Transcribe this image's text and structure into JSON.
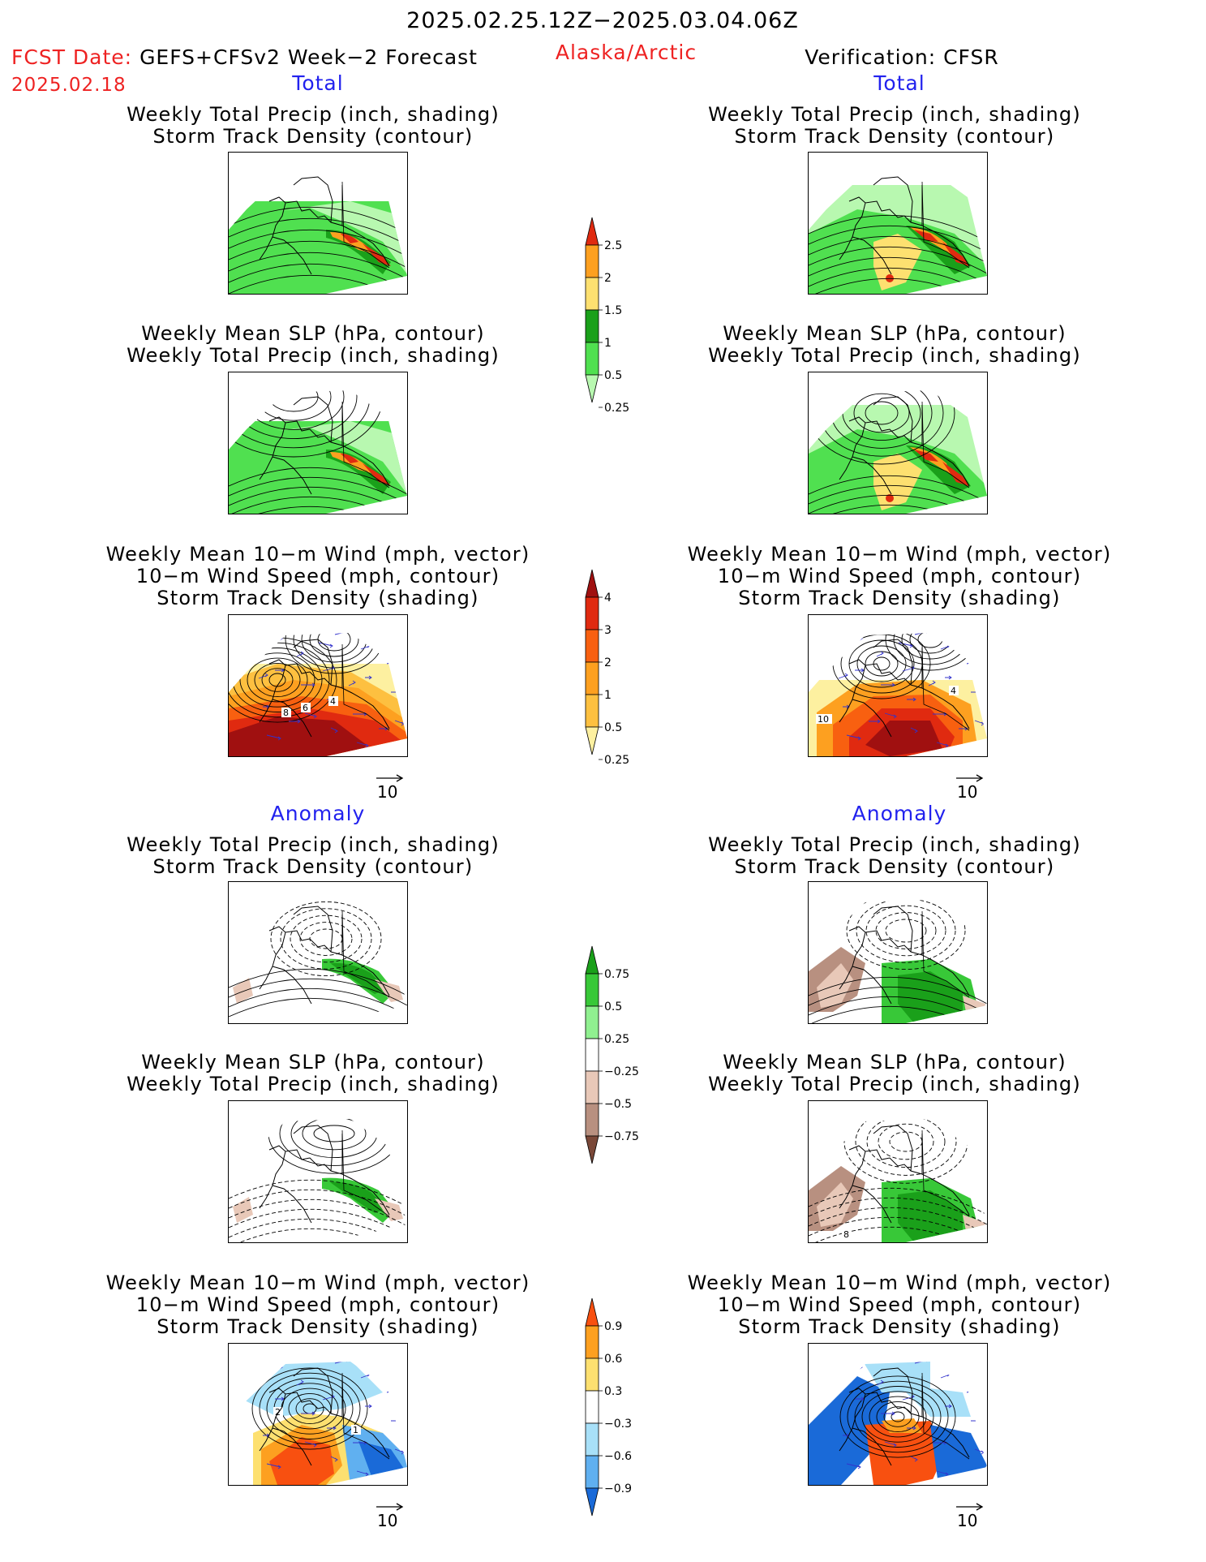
{
  "header": {
    "valid_period": "2025.02.25.12Z−2025.03.04.06Z",
    "fcst_date_label": "FCST Date:",
    "fcst_model": "GEFS+CFSv2 Week−2 Forecast",
    "fcst_date": "2025.02.18",
    "region": "Alaska/Arctic",
    "verification": "Verification: CFSR"
  },
  "sections": {
    "total": "Total",
    "anomaly": "Anomaly"
  },
  "titles": {
    "precip_track": "Weekly Total Precip (inch, shading)\nStorm Track Density (contour)",
    "slp_precip": "Weekly Mean SLP (hPa, contour)\nWeekly Total Precip (inch, shading)",
    "wind_track": "Weekly Mean 10−m Wind (mph, vector)\n10−m Wind Speed (mph, contour)\nStorm Track Density (shading)"
  },
  "colorbars": {
    "precip_total": {
      "labels": [
        "2.5",
        "2",
        "1.5",
        "1",
        "0.5",
        "0.25"
      ],
      "colors": [
        "#e02a10",
        "#fda020",
        "#fde070",
        "#1aa01a",
        "#50e050",
        "#b8f8b0"
      ]
    },
    "track_total": {
      "labels": [
        "4",
        "3",
        "2",
        "1",
        "0.5",
        "0.25"
      ],
      "colors": [
        "#a01010",
        "#e02a10",
        "#f86010",
        "#fda020",
        "#fdc040",
        "#fdf0a0"
      ]
    },
    "precip_anom": {
      "labels": [
        "0.75",
        "0.5",
        "0.25",
        "−0.25",
        "−0.5",
        "−0.75"
      ],
      "colors": [
        "#1aa01a",
        "#38c838",
        "#90f090",
        "#ffffff",
        "#e8c8b8",
        "#b89080",
        "#7a4838"
      ]
    },
    "track_anom": {
      "labels": [
        "0.9",
        "0.6",
        "0.3",
        "−0.3",
        "−0.6",
        "−0.9"
      ],
      "colors": [
        "#f85010",
        "#fda020",
        "#fde070",
        "#ffffff",
        "#a8e0f8",
        "#60b0f0",
        "#1a6ad8"
      ]
    }
  },
  "vector_ref": "10",
  "contour_labels": {
    "fcst_total_wind": [
      "8",
      "6",
      "4"
    ],
    "obs_total_wind": [
      "10",
      "4"
    ],
    "obs_anom_slp": [
      "8"
    ],
    "fcst_anom_wind": [
      "2",
      "1"
    ]
  }
}
